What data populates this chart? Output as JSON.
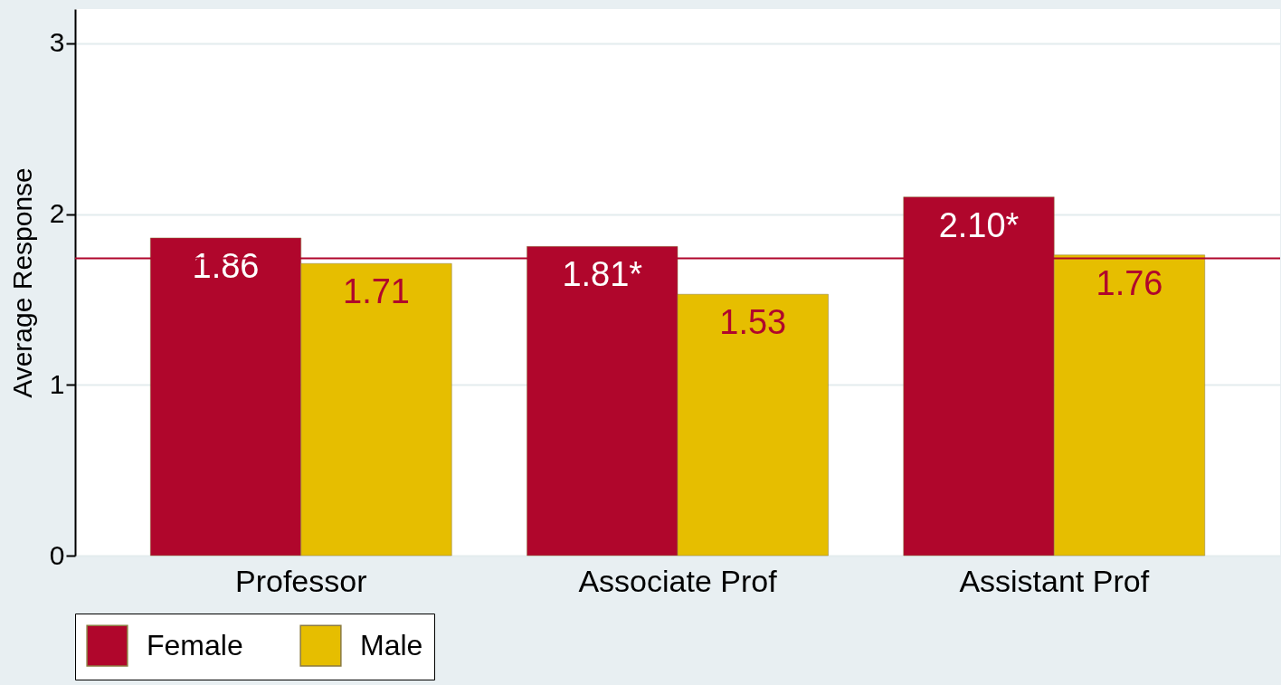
{
  "chart_data": {
    "type": "bar",
    "ylabel": "Average Response",
    "categories": [
      "Professor",
      "Associate Prof",
      "Assistant Prof"
    ],
    "series": [
      {
        "name": "Female",
        "color": "#b0062c",
        "values": [
          1.86,
          1.81,
          2.1
        ],
        "value_labels": [
          "1.86",
          "1.81*",
          "2.10*"
        ]
      },
      {
        "name": "Male",
        "color": "#e6be00",
        "values": [
          1.71,
          1.53,
          1.76
        ],
        "value_labels": [
          "1.71",
          "1.53",
          "1.76"
        ]
      }
    ],
    "ylim": [
      0,
      3.2
    ],
    "yticks": [
      0,
      1,
      2,
      3
    ],
    "grid": "y",
    "legend": "bottom",
    "ref_lines": [
      {
        "axis": "y",
        "value": 1.74,
        "color": "#b0062c"
      }
    ]
  }
}
